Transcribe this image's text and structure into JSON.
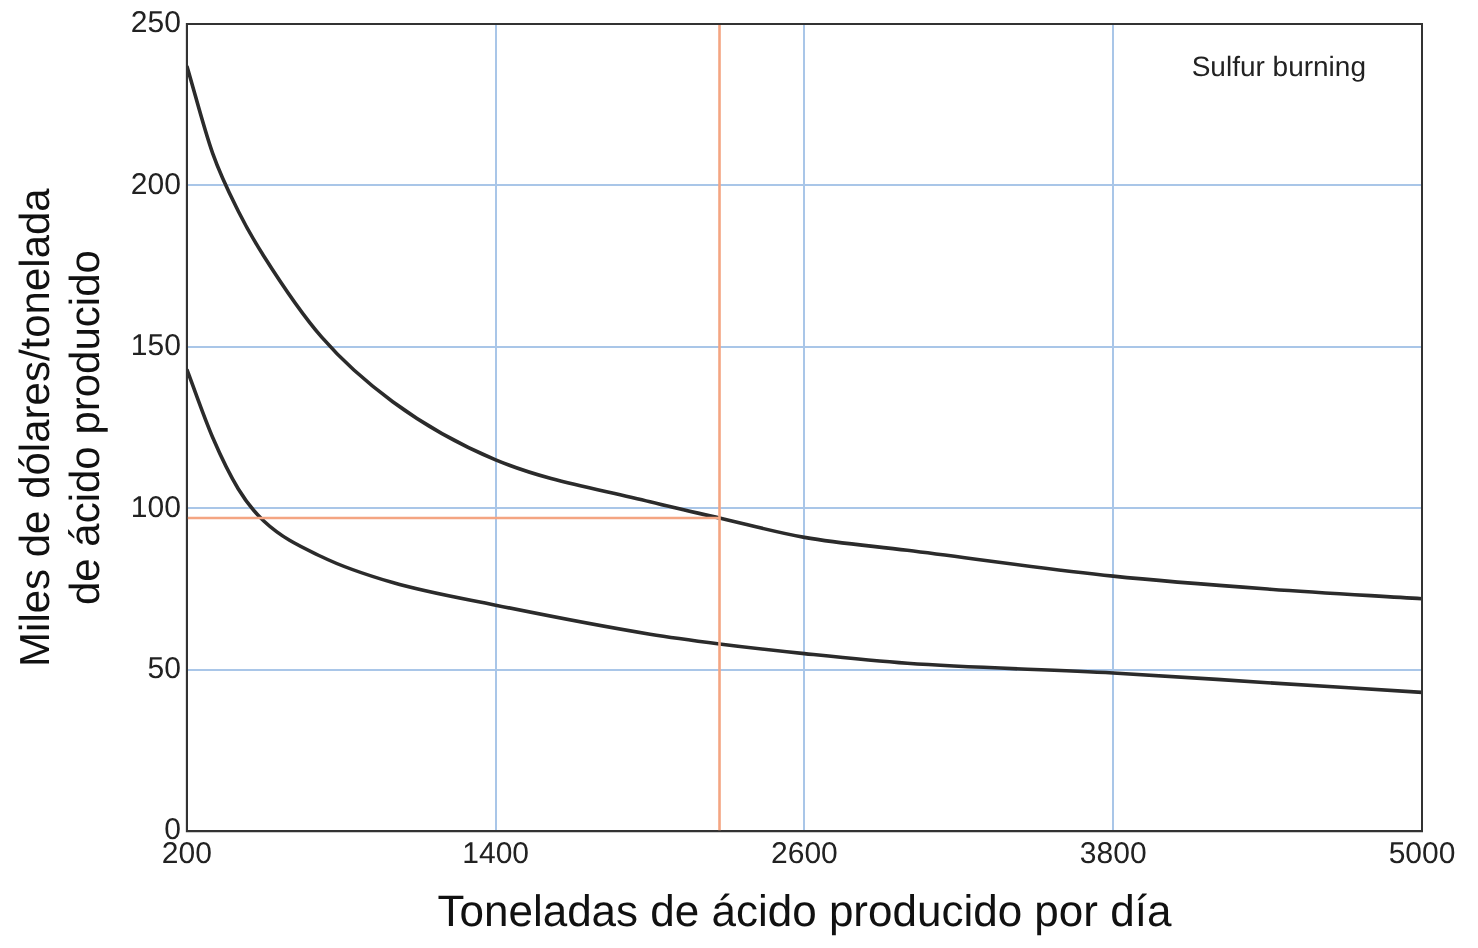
{
  "chart_data": {
    "type": "line",
    "xlabel": "Toneladas de ácido producido por día",
    "ylabel": "Miles de dólares/tonelada de ácido producido",
    "x": [
      200,
      300,
      400,
      500,
      724,
      1000,
      1400,
      2000,
      2270,
      2600,
      3000,
      3800,
      4400,
      5000
    ],
    "series": [
      {
        "color": "#2b2b2b",
        "values": [
          237,
          210,
          192,
          178,
          153,
          133,
          115,
          102,
          97,
          91,
          87,
          79,
          75,
          72
        ]
      },
      {
        "color": "#2b2b2b",
        "values": [
          143,
          122,
          106,
          96,
          85,
          77,
          70,
          61,
          58,
          55,
          52,
          49,
          46,
          43
        ]
      }
    ],
    "xlim": [
      200,
      5000
    ],
    "xticks": [
      200,
      1400,
      2600,
      3800,
      5000
    ],
    "ylim": [
      0,
      250
    ],
    "yticks": [
      0,
      50,
      100,
      150,
      200,
      250
    ],
    "grid": true,
    "legend": false,
    "marker": "none",
    "line_style": "solid",
    "ref_lines": [
      {
        "axis": "x",
        "value": 2270,
        "color": "#f4a582"
      },
      {
        "axis": "y",
        "value": 97,
        "color": "#f4a582"
      }
    ],
    "annotations": [
      "Sulfur burning"
    ]
  }
}
